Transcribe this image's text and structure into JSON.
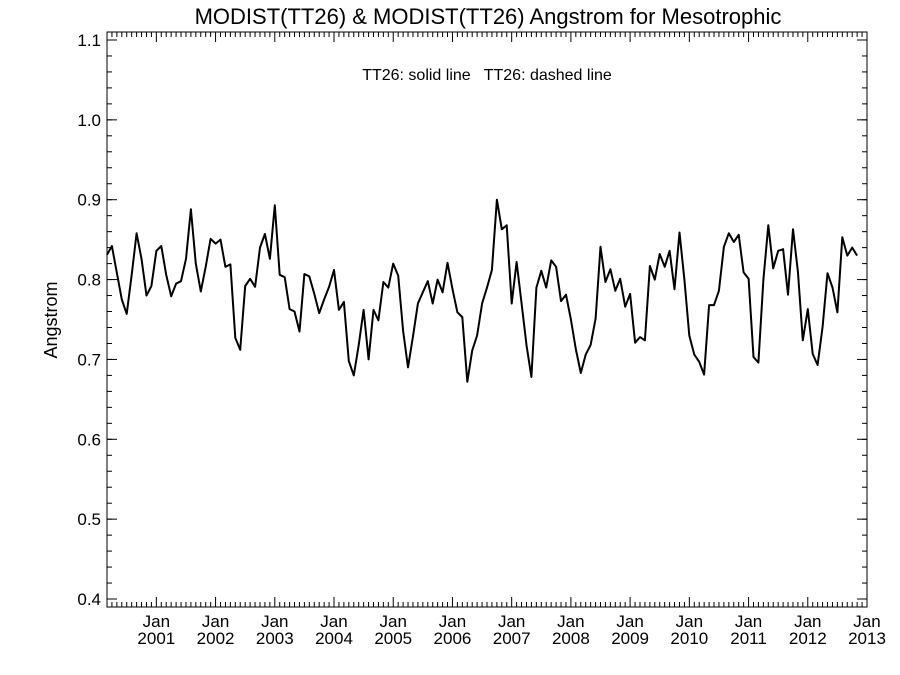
{
  "chart_data": {
    "type": "line",
    "title": "MODIST(TT26) & MODIST(TT26)  Angstrom for Mesotrophic",
    "annotation": "TT26: solid line   TT26: dashed line",
    "ylabel": "Angstrom",
    "xlabel": "",
    "ylim": [
      0.39,
      1.11
    ],
    "xlim": [
      "2000-03",
      "2013-01"
    ],
    "yticks": [
      "0.4",
      "0.5",
      "0.6",
      "0.7",
      "0.8",
      "0.9",
      "1.0",
      "1.1"
    ],
    "xticks": [
      {
        "month": "Jan",
        "year": "2001",
        "date": "2001-01"
      },
      {
        "month": "Jan",
        "year": "2002",
        "date": "2002-01"
      },
      {
        "month": "Jan",
        "year": "2003",
        "date": "2003-01"
      },
      {
        "month": "Jan",
        "year": "2004",
        "date": "2004-01"
      },
      {
        "month": "Jan",
        "year": "2005",
        "date": "2005-01"
      },
      {
        "month": "Jan",
        "year": "2006",
        "date": "2006-01"
      },
      {
        "month": "Jan",
        "year": "2007",
        "date": "2007-01"
      },
      {
        "month": "Jan",
        "year": "2008",
        "date": "2008-01"
      },
      {
        "month": "Jan",
        "year": "2009",
        "date": "2009-01"
      },
      {
        "month": "Jan",
        "year": "2010",
        "date": "2010-01"
      },
      {
        "month": "Jan",
        "year": "2011",
        "date": "2011-01"
      },
      {
        "month": "Jan",
        "year": "2012",
        "date": "2012-01"
      },
      {
        "month": "Jan",
        "year": "2013",
        "date": "2013-01"
      }
    ],
    "grid": false,
    "series": [
      {
        "style": "solid",
        "color": "#000000",
        "start": "2000-03",
        "values": [
          0.831,
          0.842,
          0.808,
          0.775,
          0.757,
          0.806,
          0.858,
          0.826,
          0.78,
          0.792,
          0.836,
          0.842,
          0.806,
          0.779,
          0.795,
          0.798,
          0.826,
          0.888,
          0.82,
          0.785,
          0.816,
          0.851,
          0.845,
          0.85,
          0.816,
          0.819,
          0.727,
          0.712,
          0.792,
          0.801,
          0.791,
          0.84,
          0.857,
          0.826,
          0.893,
          0.806,
          0.803,
          0.763,
          0.76,
          0.735,
          0.807,
          0.804,
          0.782,
          0.758,
          0.775,
          0.791,
          0.812,
          0.762,
          0.772,
          0.698,
          0.68,
          0.718,
          0.762,
          0.7,
          0.762,
          0.749,
          0.797,
          0.79,
          0.82,
          0.805,
          0.736,
          0.69,
          0.729,
          0.77,
          0.784,
          0.798,
          0.77,
          0.8,
          0.784,
          0.821,
          0.788,
          0.759,
          0.753,
          0.672,
          0.711,
          0.73,
          0.77,
          0.79,
          0.812,
          0.9,
          0.863,
          0.868,
          0.77,
          0.822,
          0.771,
          0.718,
          0.678,
          0.79,
          0.811,
          0.79,
          0.824,
          0.816,
          0.773,
          0.781,
          0.75,
          0.713,
          0.683,
          0.706,
          0.718,
          0.751,
          0.841,
          0.797,
          0.813,
          0.786,
          0.801,
          0.766,
          0.782,
          0.721,
          0.728,
          0.724,
          0.817,
          0.8,
          0.832,
          0.816,
          0.836,
          0.788,
          0.859,
          0.8,
          0.73,
          0.706,
          0.697,
          0.681,
          0.768,
          0.768,
          0.786,
          0.841,
          0.858,
          0.847,
          0.856,
          0.809,
          0.801,
          0.703,
          0.696,
          0.8,
          0.868,
          0.814,
          0.836,
          0.838,
          0.781,
          0.863,
          0.81,
          0.724,
          0.763,
          0.707,
          0.693,
          0.741,
          0.808,
          0.79,
          0.759,
          0.853,
          0.83,
          0.84,
          0.83
        ]
      }
    ]
  }
}
